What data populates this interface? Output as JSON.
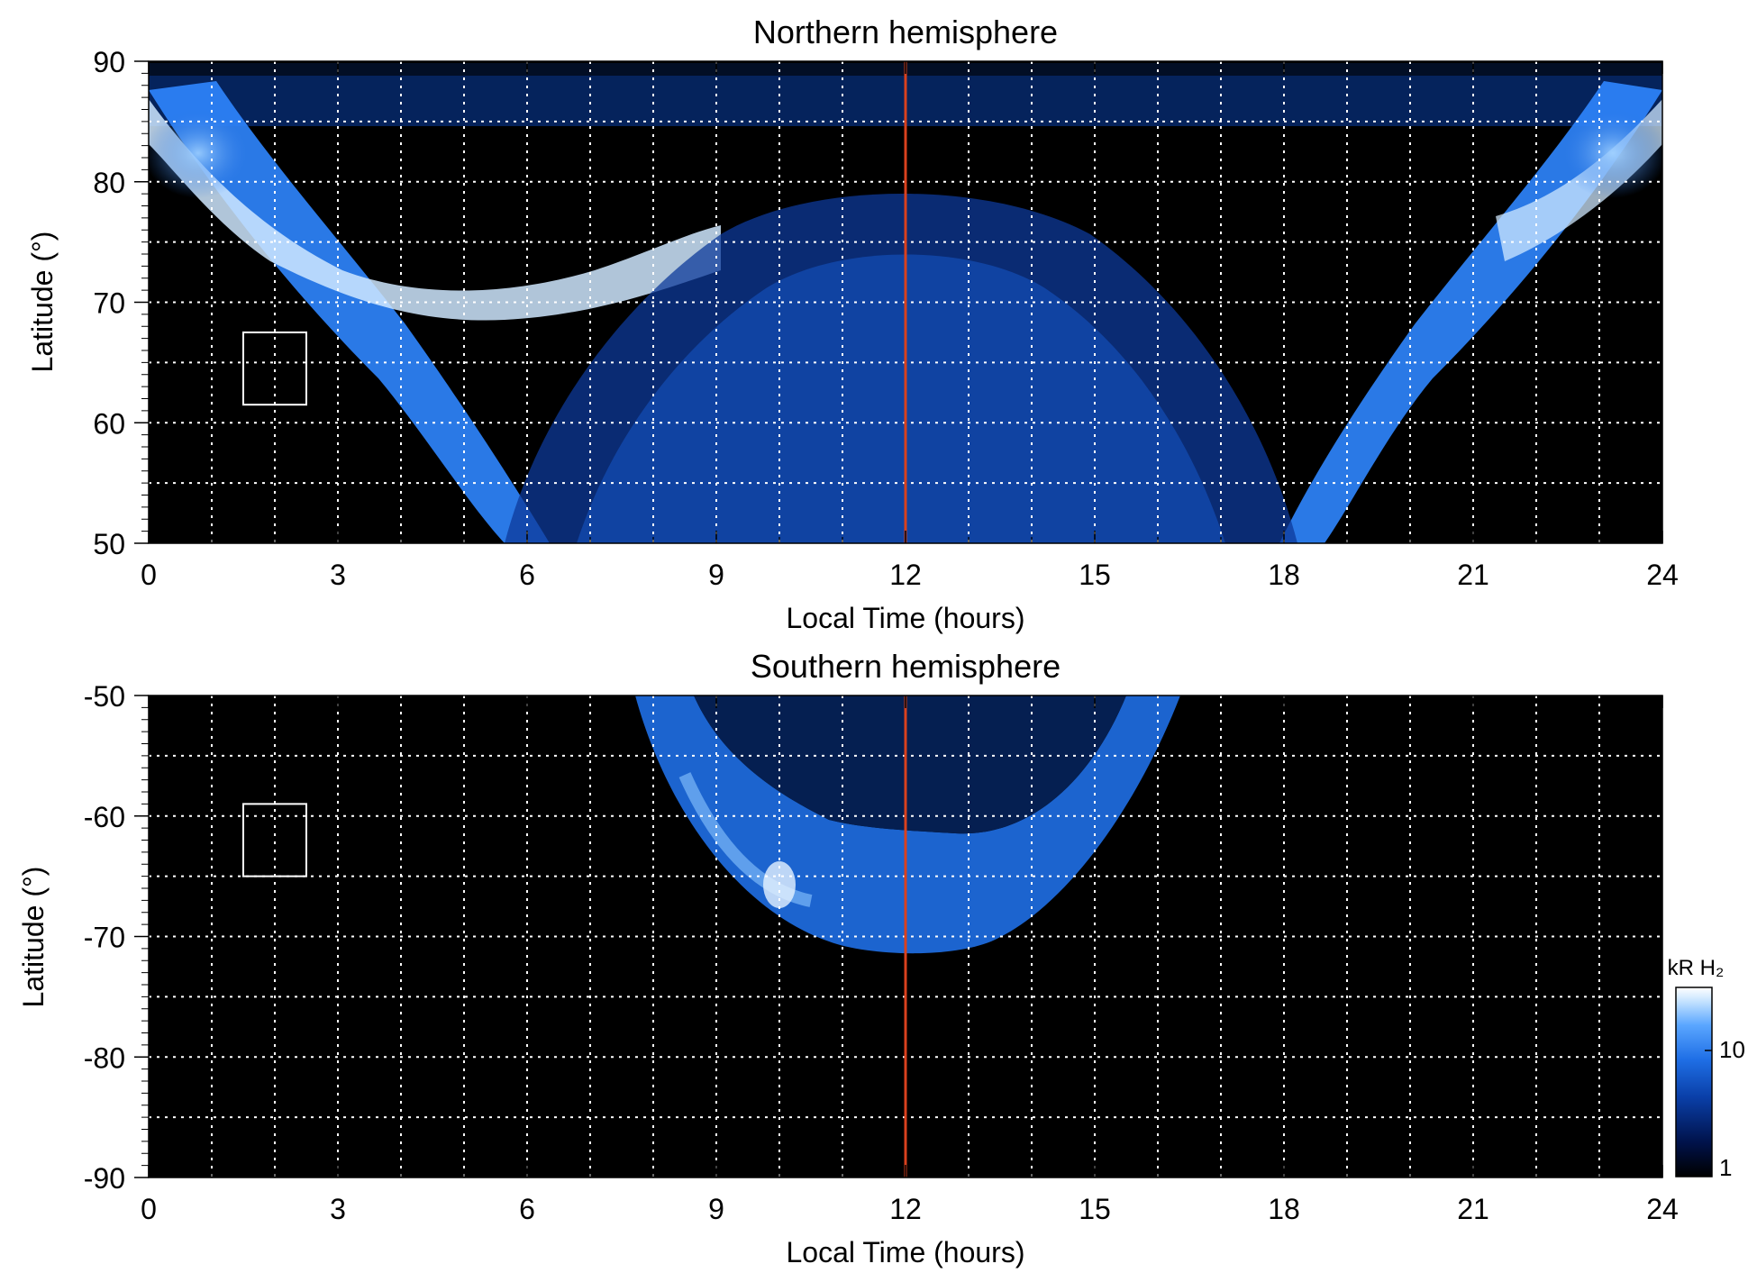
{
  "chart_data": [
    {
      "type": "heatmap",
      "title": "Northern hemisphere",
      "xlabel": "Local Time (hours)",
      "ylabel": "Latitude (°)",
      "xlim": [
        0,
        24
      ],
      "ylim": [
        50,
        90
      ],
      "xticks": [
        "0",
        "3",
        "6",
        "9",
        "12",
        "15",
        "18",
        "21",
        "24"
      ],
      "yticks": [
        "50",
        "60",
        "70",
        "80",
        "90"
      ],
      "x_gridlines": [
        1,
        2,
        3,
        4,
        5,
        6,
        7,
        8,
        9,
        10,
        11,
        13,
        14,
        15,
        16,
        17,
        18,
        19,
        20,
        21,
        22,
        23
      ],
      "y_gridlines": [
        55,
        60,
        65,
        70,
        75,
        80,
        85
      ],
      "grid": true,
      "reference_line": {
        "x": 12,
        "color": "#d9411e"
      },
      "marker_box": {
        "x0": 1.5,
        "x1": 2.5,
        "y0": 61.5,
        "y1": 67.5
      }
    },
    {
      "type": "heatmap",
      "title": "Southern hemisphere",
      "xlabel": "Local Time (hours)",
      "ylabel": "Latitude (°)",
      "xlim": [
        0,
        24
      ],
      "ylim": [
        -90,
        -50
      ],
      "xticks": [
        "0",
        "3",
        "6",
        "9",
        "12",
        "15",
        "18",
        "21",
        "24"
      ],
      "yticks": [
        "-50",
        "-60",
        "-70",
        "-80",
        "-90"
      ],
      "x_gridlines": [
        1,
        2,
        3,
        4,
        5,
        6,
        7,
        8,
        9,
        10,
        11,
        13,
        14,
        15,
        16,
        17,
        18,
        19,
        20,
        21,
        22,
        23
      ],
      "y_gridlines": [
        -55,
        -60,
        -65,
        -70,
        -75,
        -80,
        -85
      ],
      "grid": true,
      "reference_line": {
        "x": 12,
        "color": "#d9411e"
      },
      "marker_box": {
        "x0": 1.5,
        "x1": 2.5,
        "y0": -65,
        "y1": -59
      },
      "colorbar": {
        "title": "kR H₂",
        "scale": "log",
        "range": [
          1,
          30
        ],
        "ticks": [
          "1",
          "10"
        ],
        "colors": [
          "#000000",
          "#00124a",
          "#0a3fa8",
          "#1f6fe6",
          "#5aa6ff",
          "#c8e4ff",
          "#ffffff"
        ]
      }
    }
  ]
}
